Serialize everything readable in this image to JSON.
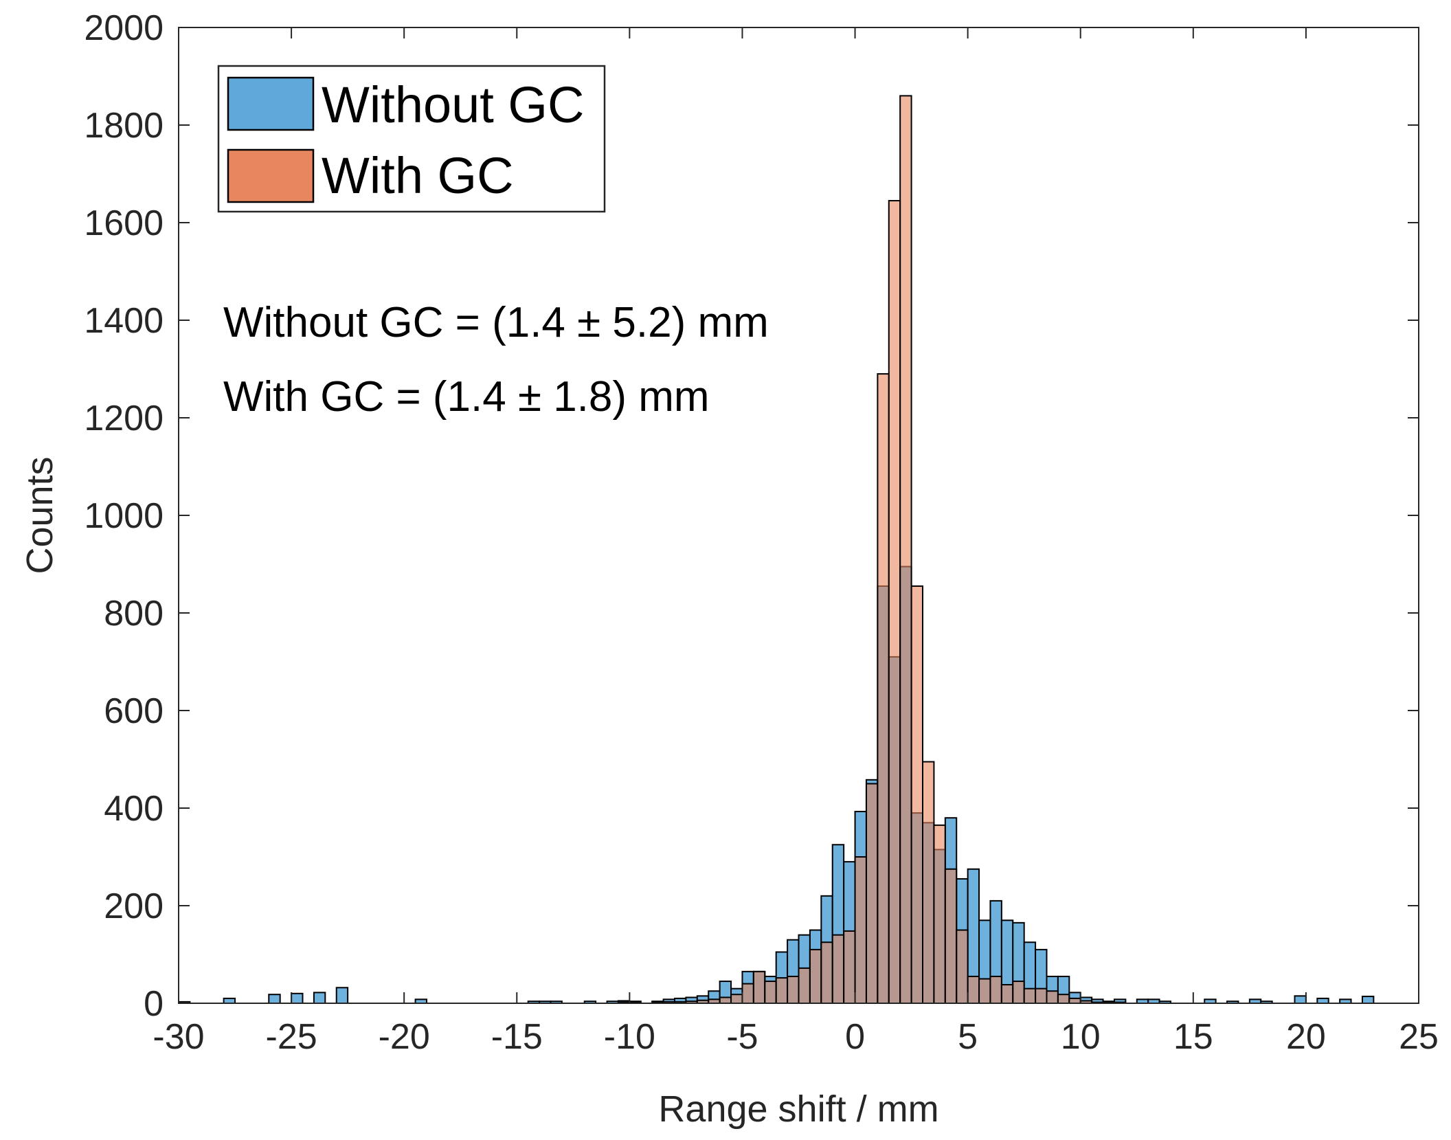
{
  "chart_data": {
    "type": "bar",
    "subtype": "histogram",
    "title": "",
    "xlabel": "Range shift / mm",
    "ylabel": "Counts",
    "xlim": [
      -30,
      25
    ],
    "ylim": [
      0,
      2000
    ],
    "xticks": [
      -30,
      -25,
      -20,
      -15,
      -10,
      -5,
      0,
      5,
      10,
      15,
      20,
      25
    ],
    "yticks": [
      0,
      200,
      400,
      600,
      800,
      1000,
      1200,
      1400,
      1600,
      1800,
      2000
    ],
    "grid": false,
    "bin_width": 0.5,
    "legend": {
      "location": "top-left",
      "entries": [
        "Without GC",
        "With GC"
      ]
    },
    "annotations": [
      "Without GC = (1.4 ± 5.2) mm",
      "With GC = (1.4 ± 1.8) mm"
    ],
    "series": [
      {
        "name": "Without GC",
        "color": "#5ea9d9",
        "bins": [
          [
            -29.75,
            3
          ],
          [
            -27.75,
            10
          ],
          [
            -25.75,
            18
          ],
          [
            -24.75,
            20
          ],
          [
            -23.75,
            22
          ],
          [
            -22.75,
            32
          ],
          [
            -19.25,
            8
          ],
          [
            -14.25,
            4
          ],
          [
            -13.75,
            4
          ],
          [
            -13.25,
            4
          ],
          [
            -11.75,
            4
          ],
          [
            -10.75,
            4
          ],
          [
            -10.25,
            5
          ],
          [
            -9.75,
            4
          ],
          [
            -8.75,
            4
          ],
          [
            -8.25,
            8
          ],
          [
            -7.75,
            10
          ],
          [
            -7.25,
            12
          ],
          [
            -6.75,
            15
          ],
          [
            -6.25,
            25
          ],
          [
            -5.75,
            45
          ],
          [
            -5.25,
            30
          ],
          [
            -4.75,
            65
          ],
          [
            -4.25,
            65
          ],
          [
            -3.75,
            55
          ],
          [
            -3.25,
            105
          ],
          [
            -2.75,
            130
          ],
          [
            -2.25,
            140
          ],
          [
            -1.75,
            150
          ],
          [
            -1.25,
            220
          ],
          [
            -0.75,
            325
          ],
          [
            -0.25,
            290
          ],
          [
            0.25,
            393
          ],
          [
            0.75,
            458
          ],
          [
            1.25,
            855
          ],
          [
            1.75,
            710
          ],
          [
            2.25,
            895
          ],
          [
            2.75,
            390
          ],
          [
            3.25,
            370
          ],
          [
            3.75,
            315
          ],
          [
            4.25,
            380
          ],
          [
            4.75,
            255
          ],
          [
            5.25,
            275
          ],
          [
            5.75,
            170
          ],
          [
            6.25,
            210
          ],
          [
            6.75,
            170
          ],
          [
            7.25,
            165
          ],
          [
            7.75,
            125
          ],
          [
            8.25,
            110
          ],
          [
            8.75,
            55
          ],
          [
            9.25,
            55
          ],
          [
            9.75,
            22
          ],
          [
            10.25,
            12
          ],
          [
            10.75,
            8
          ],
          [
            11.25,
            4
          ],
          [
            11.75,
            8
          ],
          [
            12.75,
            8
          ],
          [
            13.25,
            8
          ],
          [
            13.75,
            4
          ],
          [
            15.75,
            8
          ],
          [
            16.75,
            4
          ],
          [
            17.75,
            8
          ],
          [
            18.25,
            4
          ],
          [
            19.75,
            15
          ],
          [
            20.75,
            10
          ],
          [
            21.75,
            8
          ],
          [
            22.75,
            14
          ]
        ]
      },
      {
        "name": "With GC",
        "color": "#e8875f",
        "bins": [
          [
            -10.25,
            2
          ],
          [
            -9.75,
            2
          ],
          [
            -8.75,
            2
          ],
          [
            -8.25,
            3
          ],
          [
            -7.75,
            3
          ],
          [
            -7.25,
            4
          ],
          [
            -6.75,
            6
          ],
          [
            -6.25,
            8
          ],
          [
            -5.75,
            12
          ],
          [
            -5.25,
            18
          ],
          [
            -4.75,
            40
          ],
          [
            -4.25,
            65
          ],
          [
            -3.75,
            45
          ],
          [
            -3.25,
            52
          ],
          [
            -2.75,
            55
          ],
          [
            -2.25,
            72
          ],
          [
            -1.75,
            110
          ],
          [
            -1.25,
            125
          ],
          [
            -0.75,
            140
          ],
          [
            -0.25,
            148
          ],
          [
            0.25,
            300
          ],
          [
            0.75,
            450
          ],
          [
            1.25,
            1290
          ],
          [
            1.75,
            1645
          ],
          [
            2.25,
            1860
          ],
          [
            2.75,
            855
          ],
          [
            3.25,
            495
          ],
          [
            3.75,
            365
          ],
          [
            4.25,
            275
          ],
          [
            4.75,
            150
          ],
          [
            5.25,
            55
          ],
          [
            5.75,
            50
          ],
          [
            6.25,
            55
          ],
          [
            6.75,
            38
          ],
          [
            7.25,
            45
          ],
          [
            7.75,
            30
          ],
          [
            8.25,
            30
          ],
          [
            8.75,
            25
          ],
          [
            9.25,
            18
          ],
          [
            9.75,
            10
          ],
          [
            10.25,
            5
          ],
          [
            10.75,
            2
          ],
          [
            11.25,
            2
          ],
          [
            11.75,
            2
          ]
        ]
      }
    ]
  }
}
